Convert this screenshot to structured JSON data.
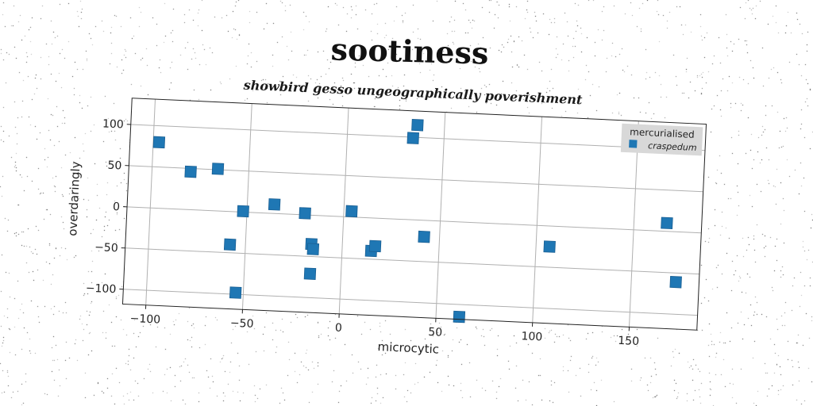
{
  "chart_data": {
    "type": "scatter",
    "title": "sootiness",
    "subtitle": "showbird gesso ungeographically poverishment",
    "xlabel": "microcytic",
    "ylabel": "overdaringly",
    "xlim": [
      -112,
      185
    ],
    "ylim": [
      -118,
      132
    ],
    "xticks": [
      -100,
      -50,
      0,
      50,
      100,
      150
    ],
    "yticks": [
      -100,
      -50,
      0,
      50,
      100
    ],
    "xtick_labels": [
      "−100",
      "−50",
      "0",
      "50",
      "100",
      "150"
    ],
    "ytick_labels": [
      "−100",
      "−50",
      "0",
      "50",
      "100"
    ],
    "grid": true,
    "legend": {
      "title": "mercurialised",
      "position": "top-right"
    },
    "series": [
      {
        "name": "craspedum",
        "color": "#1f77b4",
        "marker": "square",
        "x": [
          -97,
          -80,
          -66,
          -52,
          -36,
          -20,
          4,
          36,
          34,
          -58,
          -54,
          -16,
          -15,
          -16,
          15,
          17,
          42,
          62,
          107,
          167,
          173
        ],
        "y": [
          80,
          46,
          51,
          1,
          11,
          2,
          7,
          115,
          99,
          -40,
          -98,
          -35,
          -41,
          -71,
          -40,
          -34,
          -20,
          -115,
          -25,
          10,
          -61
        ]
      }
    ]
  }
}
